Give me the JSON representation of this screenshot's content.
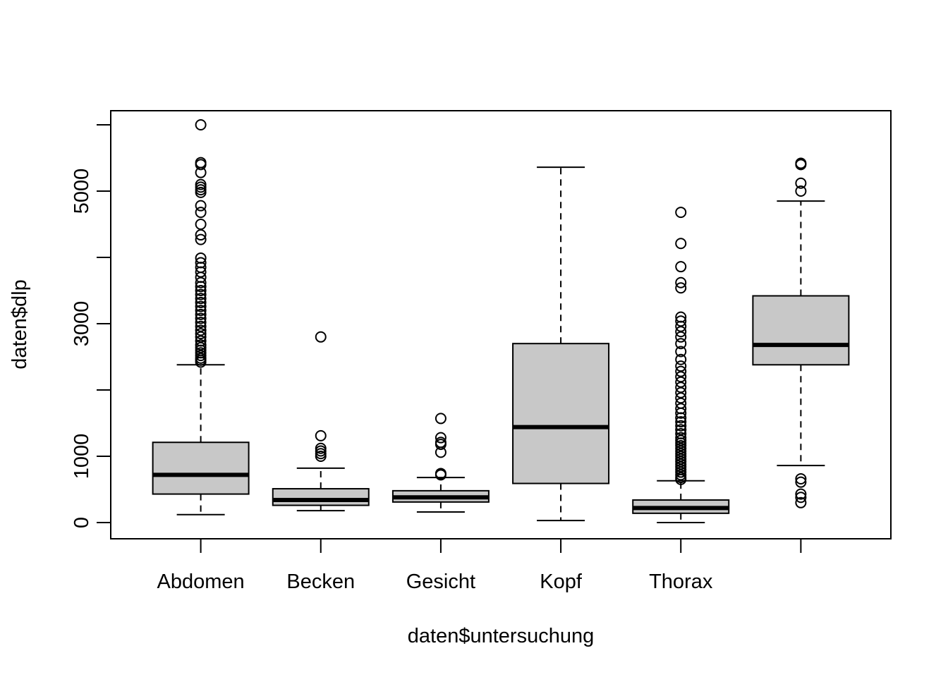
{
  "chart_data": {
    "type": "boxplot",
    "xlabel": "daten$untersuchung",
    "ylabel": "daten$dlp",
    "ylim": [
      -450,
      6000
    ],
    "y_ticks": [
      0,
      1000,
      2000,
      3000,
      4000,
      5000,
      6000
    ],
    "y_tick_labels": [
      "0",
      "1000",
      "",
      "3000",
      "",
      "5000",
      ""
    ],
    "categories": [
      "Abdomen",
      "Becken",
      "Gesicht",
      "Kopf",
      "Thorax",
      ""
    ],
    "box_fill": "#c8c8c8",
    "boxes": [
      {
        "category": "Abdomen",
        "whisker_low": 120,
        "q1": 430,
        "median": 720,
        "q3": 1210,
        "whisker_high": 2380,
        "outliers": [
          2420,
          2450,
          2480,
          2520,
          2560,
          2600,
          2640,
          2680,
          2740,
          2800,
          2850,
          2900,
          2960,
          3020,
          3080,
          3140,
          3200,
          3260,
          3320,
          3380,
          3440,
          3500,
          3560,
          3620,
          3700,
          3780,
          3850,
          3920,
          3990,
          4270,
          4340,
          4500,
          4680,
          4780,
          4980,
          5020,
          5060,
          5100,
          5280,
          5400,
          5430,
          6000
        ]
      },
      {
        "category": "Becken",
        "whisker_low": 180,
        "q1": 260,
        "median": 340,
        "q3": 510,
        "whisker_high": 820,
        "outliers": [
          1000,
          1040,
          1080,
          1120,
          1310,
          2800
        ]
      },
      {
        "category": "Gesicht",
        "whisker_low": 160,
        "q1": 310,
        "median": 380,
        "q3": 480,
        "whisker_high": 680,
        "outliers": [
          720,
          740,
          1060,
          1180,
          1210,
          1280,
          1570
        ]
      },
      {
        "category": "Kopf",
        "whisker_low": 30,
        "q1": 590,
        "median": 1440,
        "q3": 2700,
        "whisker_high": 5360,
        "outliers": []
      },
      {
        "category": "Thorax",
        "whisker_low": 0,
        "q1": 140,
        "median": 220,
        "q3": 340,
        "whisker_high": 630,
        "outliers": [
          650,
          680,
          720,
          760,
          800,
          840,
          880,
          920,
          960,
          1000,
          1040,
          1080,
          1120,
          1160,
          1200,
          1240,
          1280,
          1340,
          1400,
          1460,
          1520,
          1580,
          1650,
          1720,
          1800,
          1880,
          1960,
          2040,
          2120,
          2200,
          2280,
          2360,
          2460,
          2580,
          2700,
          2800,
          2880,
          2960,
          3040,
          3100,
          3540,
          3620,
          3860,
          4210,
          4680
        ]
      },
      {
        "category": "",
        "whisker_low": 860,
        "q1": 2380,
        "median": 2680,
        "q3": 3420,
        "whisker_high": 4850,
        "outliers": [
          300,
          380,
          430,
          610,
          660,
          5000,
          5120,
          5400,
          5420
        ]
      }
    ]
  }
}
